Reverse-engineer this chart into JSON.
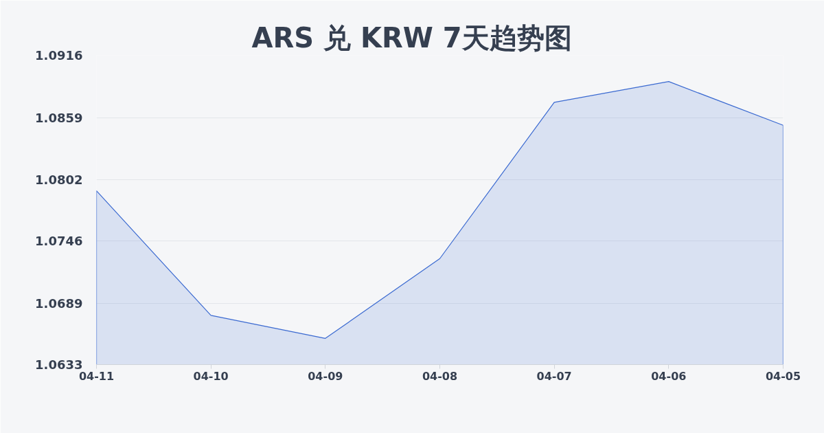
{
  "chart_data": {
    "type": "area",
    "title": "ARS 兑 KRW 7天趋势图",
    "categories": [
      "04-11",
      "04-10",
      "04-09",
      "04-08",
      "04-07",
      "04-06",
      "04-05"
    ],
    "values": [
      1.0792,
      1.0678,
      1.0657,
      1.073,
      1.0873,
      1.0892,
      1.0852
    ],
    "color": "#3b6ad1",
    "ylim": [
      1.0633,
      1.0916
    ],
    "yticks": [
      1.0633,
      1.0689,
      1.0746,
      1.0802,
      1.0859,
      1.0916
    ],
    "grid": "y"
  }
}
